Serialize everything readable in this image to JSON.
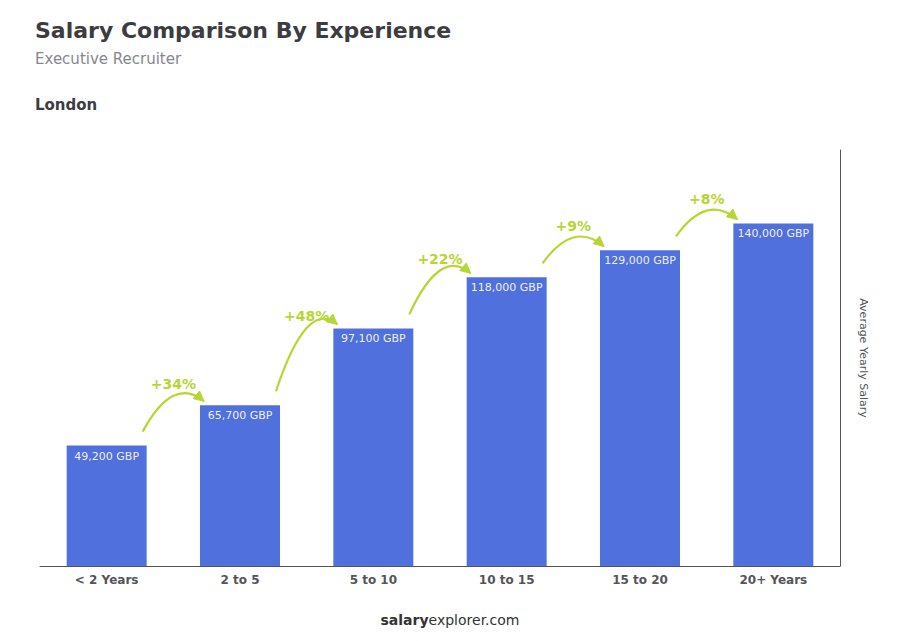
{
  "chart_data": {
    "type": "bar",
    "title": "Salary Comparison By Experience",
    "subtitle": "Executive Recruiter",
    "city": "London",
    "ylabel": "Average Yearly Salary",
    "footer_bold": "salary",
    "footer_normal": "explorer.com",
    "categories": [
      "< 2 Years",
      "2 to 5",
      "5 to 10",
      "10 to 15",
      "15 to 20",
      "20+ Years"
    ],
    "values": [
      49200,
      65700,
      97100,
      118000,
      129000,
      140000
    ],
    "value_labels": [
      "49,200 GBP",
      "65,700 GBP",
      "97,100 GBP",
      "118,000 GBP",
      "129,000 GBP",
      "140,000 GBP"
    ],
    "data_labels": true,
    "annotations": [
      "+34%",
      "+48%",
      "+22%",
      "+9%",
      "+8%"
    ],
    "ylim": [
      0,
      170000
    ],
    "grid": false,
    "tick_labels": "x"
  }
}
